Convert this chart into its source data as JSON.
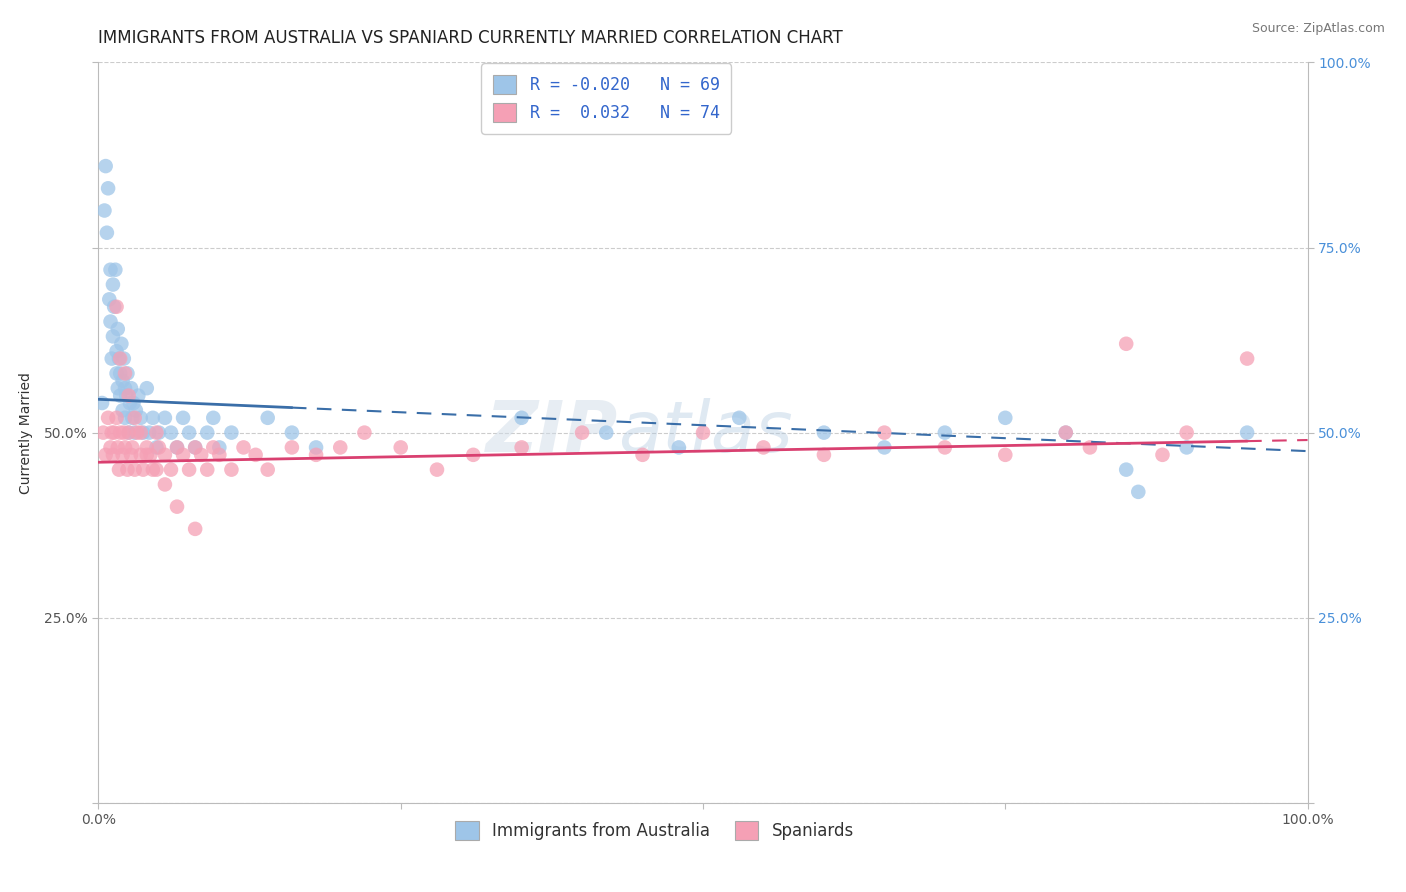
{
  "title": "IMMIGRANTS FROM AUSTRALIA VS SPANIARD CURRENTLY MARRIED CORRELATION CHART",
  "source": "Source: ZipAtlas.com",
  "ylabel": "Currently Married",
  "legend_labels": [
    "Immigrants from Australia",
    "Spaniards"
  ],
  "r_blue": -0.02,
  "n_blue": 69,
  "r_pink": 0.032,
  "n_pink": 74,
  "blue_color": "#9ec5e8",
  "pink_color": "#f5a0b5",
  "blue_line_color": "#3a6ea8",
  "pink_line_color": "#d94070",
  "watermark_text": "ZIP",
  "watermark_text2": "atlas",
  "x_min": 0.0,
  "x_max": 1.0,
  "y_min": 0.0,
  "y_max": 1.0,
  "background_color": "#ffffff",
  "grid_color": "#cccccc",
  "title_fontsize": 12,
  "label_fontsize": 10,
  "tick_fontsize": 10,
  "legend_fontsize": 12,
  "blue_scatter_x": [
    0.003,
    0.005,
    0.006,
    0.007,
    0.008,
    0.009,
    0.01,
    0.01,
    0.011,
    0.012,
    0.012,
    0.013,
    0.014,
    0.015,
    0.015,
    0.016,
    0.016,
    0.017,
    0.018,
    0.018,
    0.019,
    0.02,
    0.02,
    0.021,
    0.022,
    0.022,
    0.023,
    0.024,
    0.025,
    0.026,
    0.027,
    0.028,
    0.029,
    0.03,
    0.031,
    0.033,
    0.035,
    0.037,
    0.04,
    0.042,
    0.045,
    0.048,
    0.05,
    0.055,
    0.06,
    0.065,
    0.07,
    0.075,
    0.08,
    0.09,
    0.095,
    0.1,
    0.11,
    0.14,
    0.16,
    0.18,
    0.35,
    0.42,
    0.48,
    0.53,
    0.6,
    0.65,
    0.7,
    0.75,
    0.8,
    0.85,
    0.86,
    0.9,
    0.95
  ],
  "blue_scatter_y": [
    0.54,
    0.8,
    0.86,
    0.77,
    0.83,
    0.68,
    0.72,
    0.65,
    0.6,
    0.7,
    0.63,
    0.67,
    0.72,
    0.61,
    0.58,
    0.64,
    0.56,
    0.6,
    0.58,
    0.55,
    0.62,
    0.57,
    0.53,
    0.6,
    0.56,
    0.52,
    0.55,
    0.58,
    0.5,
    0.54,
    0.56,
    0.52,
    0.54,
    0.5,
    0.53,
    0.55,
    0.52,
    0.5,
    0.56,
    0.5,
    0.52,
    0.48,
    0.5,
    0.52,
    0.5,
    0.48,
    0.52,
    0.5,
    0.48,
    0.5,
    0.52,
    0.48,
    0.5,
    0.52,
    0.5,
    0.48,
    0.52,
    0.5,
    0.48,
    0.52,
    0.5,
    0.48,
    0.5,
    0.52,
    0.5,
    0.45,
    0.42,
    0.48,
    0.5
  ],
  "pink_scatter_x": [
    0.004,
    0.006,
    0.008,
    0.01,
    0.011,
    0.012,
    0.013,
    0.015,
    0.016,
    0.017,
    0.018,
    0.02,
    0.021,
    0.022,
    0.024,
    0.025,
    0.027,
    0.028,
    0.03,
    0.032,
    0.035,
    0.037,
    0.04,
    0.043,
    0.045,
    0.048,
    0.05,
    0.055,
    0.06,
    0.065,
    0.07,
    0.075,
    0.08,
    0.085,
    0.09,
    0.095,
    0.1,
    0.11,
    0.12,
    0.13,
    0.14,
    0.16,
    0.18,
    0.2,
    0.22,
    0.25,
    0.28,
    0.31,
    0.35,
    0.4,
    0.45,
    0.5,
    0.55,
    0.6,
    0.65,
    0.7,
    0.75,
    0.8,
    0.82,
    0.85,
    0.88,
    0.9,
    0.015,
    0.018,
    0.022,
    0.025,
    0.03,
    0.035,
    0.04,
    0.048,
    0.055,
    0.065,
    0.08,
    0.95
  ],
  "pink_scatter_y": [
    0.5,
    0.47,
    0.52,
    0.48,
    0.5,
    0.47,
    0.5,
    0.52,
    0.48,
    0.45,
    0.5,
    0.47,
    0.5,
    0.48,
    0.45,
    0.5,
    0.47,
    0.48,
    0.45,
    0.5,
    0.47,
    0.45,
    0.48,
    0.47,
    0.45,
    0.5,
    0.48,
    0.47,
    0.45,
    0.48,
    0.47,
    0.45,
    0.48,
    0.47,
    0.45,
    0.48,
    0.47,
    0.45,
    0.48,
    0.47,
    0.45,
    0.48,
    0.47,
    0.48,
    0.5,
    0.48,
    0.45,
    0.47,
    0.48,
    0.5,
    0.47,
    0.5,
    0.48,
    0.47,
    0.5,
    0.48,
    0.47,
    0.5,
    0.48,
    0.62,
    0.47,
    0.5,
    0.67,
    0.6,
    0.58,
    0.55,
    0.52,
    0.5,
    0.47,
    0.45,
    0.43,
    0.4,
    0.37,
    0.6
  ],
  "blue_line_x_start": 0.0,
  "blue_line_x_solid_end": 0.16,
  "blue_line_x_end": 1.0,
  "blue_line_y_start": 0.545,
  "blue_line_y_end": 0.475,
  "pink_line_x_start": 0.0,
  "pink_line_x_solid_end": 0.95,
  "pink_line_x_end": 1.0,
  "pink_line_y_start": 0.46,
  "pink_line_y_end": 0.49
}
